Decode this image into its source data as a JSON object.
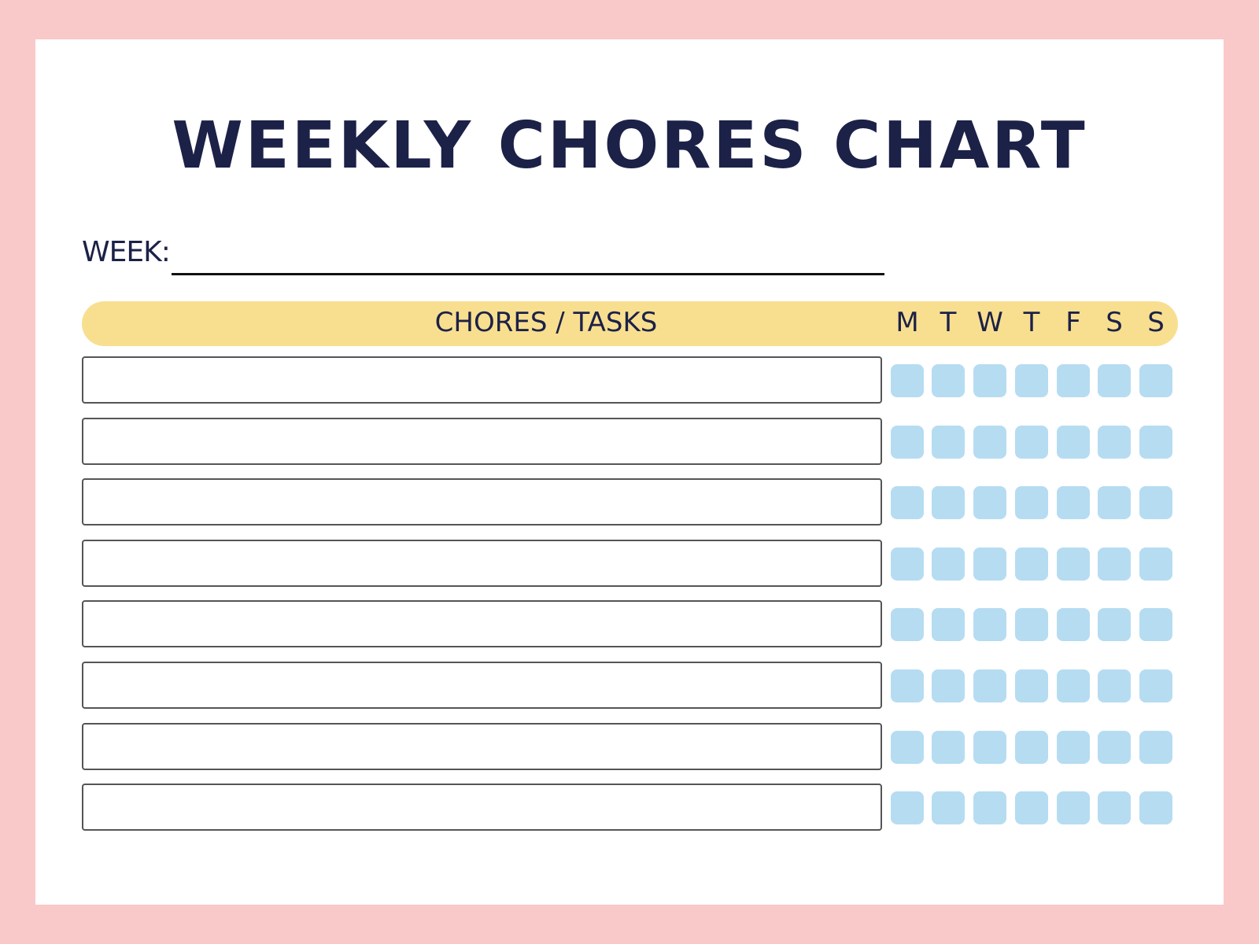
{
  "colors": {
    "border": "#f9c8c8",
    "header": "#f8df90",
    "checkbox": "#b6dcf2",
    "text": "#1c2147"
  },
  "title": "WEEKLY CHORES CHART",
  "week_label": "WEEK:",
  "header": {
    "label": "CHORES / TASKS",
    "days": [
      "M",
      "T",
      "W",
      "T",
      "F",
      "S",
      "S"
    ]
  },
  "rows": [
    {
      "task": ""
    },
    {
      "task": ""
    },
    {
      "task": ""
    },
    {
      "task": ""
    },
    {
      "task": ""
    },
    {
      "task": ""
    },
    {
      "task": ""
    },
    {
      "task": ""
    }
  ]
}
